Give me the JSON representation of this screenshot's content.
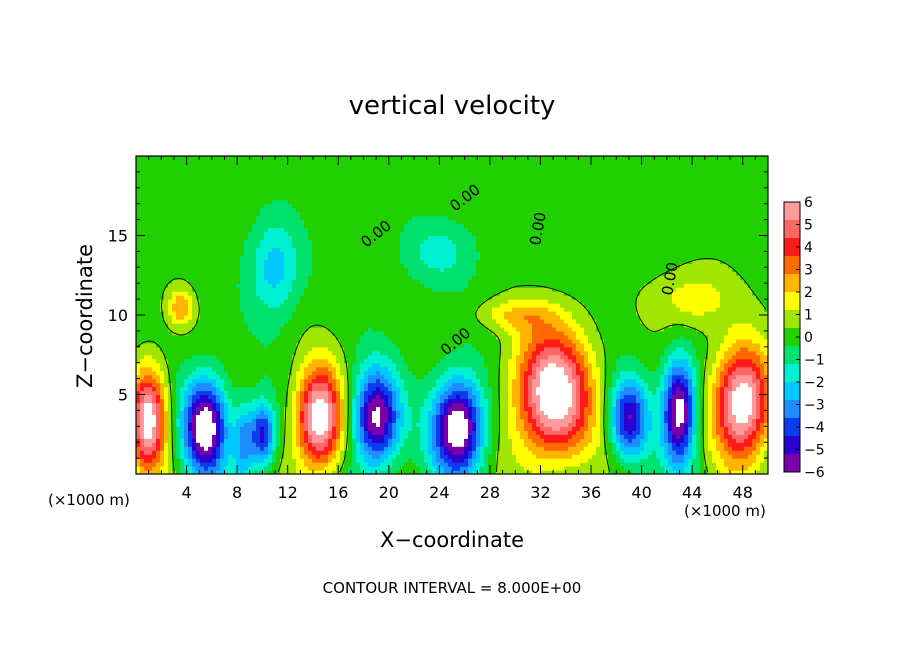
{
  "chart_data": {
    "type": "heatmap",
    "title": "vertical velocity",
    "xlabel": "X−coordinate",
    "ylabel": "Z−coordinate",
    "x_units": "(×1000 m)",
    "y_units": "(×1000 m)",
    "xlim": [
      0,
      50
    ],
    "ylim": [
      0,
      20
    ],
    "x_ticks": [
      4,
      8,
      12,
      16,
      20,
      24,
      28,
      32,
      36,
      40,
      44,
      48
    ],
    "x_tick_labels": [
      "4",
      "8",
      "12",
      "16",
      "20",
      "24",
      "28",
      "32",
      "36",
      "40",
      "44",
      "48"
    ],
    "y_ticks": [
      5,
      10,
      15
    ],
    "y_tick_labels": [
      "5",
      "10",
      "15"
    ],
    "contour_label": "0.00",
    "footer": "CONTOUR INTERVAL = 8.000E+00",
    "colorbar": {
      "range": [
        -6,
        6
      ],
      "ticks": [
        6,
        5,
        4,
        3,
        2,
        1,
        0,
        -1,
        -2,
        -3,
        -4,
        -5,
        -6
      ],
      "tick_labels": [
        "6",
        "5",
        "4",
        "3",
        "2",
        "1",
        "0",
        "−1",
        "−2",
        "−3",
        "−4",
        "−5",
        "−6"
      ],
      "colors": [
        "#7a00aa",
        "#2a00d0",
        "#0a3cf0",
        "#1e8cff",
        "#00c8ff",
        "#00f0d2",
        "#00e16e",
        "#20d000",
        "#a0e600",
        "#ffff00",
        "#ffb400",
        "#ff6a00",
        "#ff1a1a",
        "#ff6666",
        "#ff9a9a"
      ]
    },
    "features": [
      {
        "x": 1,
        "z": 3.5,
        "w": 0.9,
        "type": "up",
        "sx": 1.4,
        "sz": 3.2
      },
      {
        "x": 5.5,
        "z": 3,
        "w": -0.95,
        "type": "down",
        "sx": 1.7,
        "sz": 3
      },
      {
        "x": 8.5,
        "z": 2,
        "w": -0.4,
        "type": "down",
        "sx": 0.8,
        "sz": 2.5
      },
      {
        "x": 10,
        "z": 2.5,
        "w": -0.7,
        "type": "down",
        "sx": 1,
        "sz": 2
      },
      {
        "x": 14.5,
        "z": 3.5,
        "w": 1,
        "type": "up",
        "sx": 1.8,
        "sz": 3.2
      },
      {
        "x": 19,
        "z": 3.5,
        "w": -0.9,
        "type": "down",
        "sx": 1.8,
        "sz": 3
      },
      {
        "x": 25.5,
        "z": 3,
        "w": -1,
        "type": "down",
        "sx": 2,
        "sz": 3
      },
      {
        "x": 33,
        "z": 5,
        "w": 1,
        "type": "up",
        "sx": 3,
        "sz": 4
      },
      {
        "x": 39,
        "z": 3.5,
        "w": -0.7,
        "type": "down",
        "sx": 1.5,
        "sz": 2.5
      },
      {
        "x": 43,
        "z": 4,
        "w": -0.95,
        "type": "down",
        "sx": 1.3,
        "sz": 3.2
      },
      {
        "x": 48,
        "z": 4.5,
        "w": 1,
        "type": "up",
        "sx": 2.2,
        "sz": 3.5
      },
      {
        "x": 11,
        "z": 13,
        "w": -0.35,
        "type": "down",
        "sx": 2,
        "sz": 3
      },
      {
        "x": 3.5,
        "z": 10.5,
        "w": 0.35,
        "type": "up",
        "sx": 1,
        "sz": 1.2
      },
      {
        "x": 30,
        "z": 10,
        "w": 0.25,
        "type": "up",
        "sx": 3,
        "sz": 1
      },
      {
        "x": 44,
        "z": 11,
        "w": 0.25,
        "type": "up",
        "sx": 3,
        "sz": 2
      },
      {
        "x": 24,
        "z": 14,
        "w": -0.2,
        "type": "down",
        "sx": 3,
        "sz": 2
      }
    ]
  }
}
